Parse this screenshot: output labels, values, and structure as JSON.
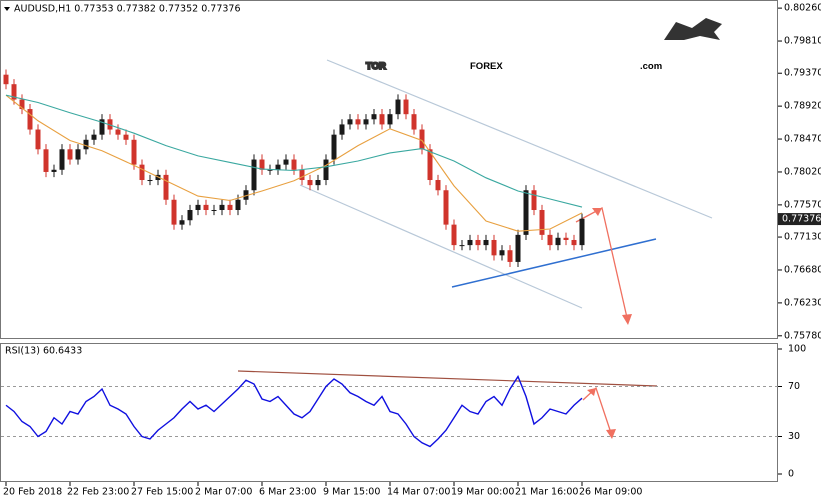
{
  "logo": {
    "prefix": "TOR",
    "brand": "FOREX",
    "suffix": ".com"
  },
  "chart_data": [
    {
      "type": "candlestick",
      "title": "AUDUSD,H1  0.77353 0.77382 0.77352 0.77376",
      "up_color": "#1a1a1a",
      "down_color": "#d0342c",
      "open": [
        0.7935,
        0.7922,
        0.7901,
        0.7888,
        0.786,
        0.7833,
        0.7802,
        0.7805,
        0.7833,
        0.7819,
        0.7833,
        0.7846,
        0.7853,
        0.7874,
        0.786,
        0.7853,
        0.7846,
        0.7812,
        0.7791,
        0.7791,
        0.7798,
        0.7764,
        0.773,
        0.7736,
        0.775,
        0.7757,
        0.775,
        0.775,
        0.7757,
        0.775,
        0.7764,
        0.7777,
        0.7819,
        0.7805,
        0.7805,
        0.7812,
        0.7819,
        0.7805,
        0.7791,
        0.7784,
        0.7791,
        0.7819,
        0.7853,
        0.7867,
        0.7874,
        0.7867,
        0.7874,
        0.7881,
        0.7867,
        0.7881,
        0.7901,
        0.7881,
        0.786,
        0.7833,
        0.7791,
        0.7777,
        0.773,
        0.7702,
        0.7702,
        0.7709,
        0.7702,
        0.7709,
        0.7688,
        0.7695,
        0.7679,
        0.7716,
        0.7777,
        0.775,
        0.7716,
        0.7702,
        0.7712,
        0.7709,
        0.7702
      ],
      "high": [
        0.7942,
        0.7929,
        0.7908,
        0.7895,
        0.7867,
        0.784,
        0.7812,
        0.784,
        0.784,
        0.784,
        0.7853,
        0.786,
        0.7881,
        0.7881,
        0.7867,
        0.786,
        0.7853,
        0.7819,
        0.7798,
        0.7805,
        0.7805,
        0.7771,
        0.7743,
        0.7757,
        0.7764,
        0.7764,
        0.7757,
        0.7764,
        0.7764,
        0.7771,
        0.7784,
        0.7826,
        0.7826,
        0.7812,
        0.7819,
        0.7826,
        0.7826,
        0.7812,
        0.7798,
        0.7798,
        0.7826,
        0.786,
        0.7874,
        0.7881,
        0.7881,
        0.7881,
        0.7888,
        0.7888,
        0.7888,
        0.7908,
        0.7908,
        0.7888,
        0.7867,
        0.784,
        0.7798,
        0.7784,
        0.7737,
        0.7709,
        0.7716,
        0.7716,
        0.7716,
        0.7716,
        0.7702,
        0.7702,
        0.7723,
        0.7784,
        0.7784,
        0.7757,
        0.7723,
        0.7719,
        0.7719,
        0.7716,
        0.7745
      ],
      "low": [
        0.7915,
        0.7894,
        0.7881,
        0.7853,
        0.7826,
        0.7795,
        0.7795,
        0.7798,
        0.7812,
        0.7812,
        0.7826,
        0.7839,
        0.7846,
        0.7853,
        0.7846,
        0.7839,
        0.7805,
        0.7784,
        0.7784,
        0.7784,
        0.7757,
        0.7723,
        0.7723,
        0.7729,
        0.7743,
        0.7743,
        0.7743,
        0.7743,
        0.7743,
        0.7743,
        0.7757,
        0.777,
        0.7798,
        0.7798,
        0.7798,
        0.7805,
        0.7798,
        0.7784,
        0.7777,
        0.7777,
        0.7784,
        0.7812,
        0.7846,
        0.786,
        0.786,
        0.786,
        0.7867,
        0.786,
        0.786,
        0.7874,
        0.7874,
        0.7853,
        0.7826,
        0.7784,
        0.777,
        0.7723,
        0.7695,
        0.7695,
        0.7695,
        0.7695,
        0.7695,
        0.7681,
        0.7681,
        0.7672,
        0.7672,
        0.7709,
        0.7743,
        0.7709,
        0.7695,
        0.7695,
        0.7702,
        0.7695,
        0.7695
      ],
      "close": [
        0.7922,
        0.7901,
        0.7888,
        0.786,
        0.7833,
        0.7802,
        0.7805,
        0.7833,
        0.7819,
        0.7833,
        0.7846,
        0.7853,
        0.7874,
        0.786,
        0.7853,
        0.7846,
        0.7812,
        0.7791,
        0.7791,
        0.7798,
        0.7764,
        0.773,
        0.7736,
        0.775,
        0.7757,
        0.775,
        0.775,
        0.7757,
        0.775,
        0.7764,
        0.7777,
        0.7819,
        0.7805,
        0.7805,
        0.7812,
        0.7819,
        0.7805,
        0.7791,
        0.7784,
        0.7791,
        0.7819,
        0.7853,
        0.7867,
        0.7874,
        0.7867,
        0.7874,
        0.7881,
        0.7867,
        0.7881,
        0.7901,
        0.7881,
        0.786,
        0.7833,
        0.7791,
        0.7777,
        0.773,
        0.7702,
        0.7702,
        0.7709,
        0.7702,
        0.7709,
        0.7688,
        0.7695,
        0.7679,
        0.7716,
        0.7777,
        0.775,
        0.7716,
        0.7702,
        0.7712,
        0.7709,
        0.7702,
        0.7738
      ],
      "series": [
        {
          "color": "#e8a040",
          "x": [
            0,
            4,
            8,
            12,
            16,
            20,
            24,
            28,
            32,
            36,
            40,
            44,
            48,
            52,
            56,
            60,
            64,
            68,
            72
          ],
          "values": [
            0.7907,
            0.7872,
            0.7845,
            0.7831,
            0.7811,
            0.779,
            0.7769,
            0.7763,
            0.7776,
            0.779,
            0.7811,
            0.7838,
            0.7861,
            0.7845,
            0.7783,
            0.7735,
            0.7721,
            0.7724,
            0.7746
          ]
        },
        {
          "color": "#3aa8a0",
          "x": [
            0,
            4,
            8,
            12,
            16,
            20,
            24,
            28,
            32,
            36,
            40,
            44,
            48,
            52,
            56,
            60,
            64,
            68,
            72
          ],
          "values": [
            0.7907,
            0.7897,
            0.7883,
            0.787,
            0.7855,
            0.7838,
            0.7824,
            0.7815,
            0.7806,
            0.7804,
            0.7809,
            0.7817,
            0.7828,
            0.7834,
            0.7817,
            0.7794,
            0.7776,
            0.7765,
            0.7754
          ]
        }
      ],
      "last_price": {
        "value": 0.77376,
        "label": "0.77376"
      },
      "ylim": [
        0.7575,
        0.8033
      ],
      "yticks": [
        {
          "value": 0.8026,
          "label": "0.80260"
        },
        {
          "value": 0.7981,
          "label": "0.79810"
        },
        {
          "value": 0.7937,
          "label": "0.79370"
        },
        {
          "value": 0.7892,
          "label": "0.78920"
        },
        {
          "value": 0.7847,
          "label": "0.78470"
        },
        {
          "value": 0.7802,
          "label": "0.78020"
        },
        {
          "value": 0.7757,
          "label": "0.77570"
        },
        {
          "value": 0.7713,
          "label": "0.77130"
        },
        {
          "value": 0.7668,
          "label": "0.76680"
        },
        {
          "value": 0.7623,
          "label": "0.76230"
        },
        {
          "value": 0.7578,
          "label": "0.75780"
        }
      ]
    },
    {
      "type": "line",
      "title": "RSI(13) 60.6433",
      "color": "#1010e0",
      "values": [
        55,
        50,
        42,
        38,
        30,
        34,
        45,
        40,
        50,
        48,
        58,
        62,
        68,
        55,
        52,
        48,
        38,
        30,
        28,
        35,
        40,
        45,
        52,
        58,
        52,
        55,
        50,
        56,
        62,
        68,
        75,
        72,
        60,
        58,
        62,
        55,
        48,
        45,
        50,
        60,
        70,
        76,
        72,
        65,
        62,
        58,
        55,
        62,
        50,
        48,
        40,
        30,
        25,
        22,
        28,
        35,
        45,
        55,
        50,
        48,
        58,
        62,
        55,
        68,
        78,
        62,
        40,
        45,
        52,
        50,
        48,
        55,
        60.6433
      ],
      "ylim": [
        0,
        100
      ],
      "yticks": [
        100,
        70,
        30,
        0
      ],
      "x_labels": [
        {
          "value": 0,
          "label": "20 Feb 2018"
        },
        {
          "value": 8,
          "label": "22 Feb 23:00"
        },
        {
          "value": 16,
          "label": "27 Feb 15:00"
        },
        {
          "value": 24,
          "label": "2 Mar 07:00"
        },
        {
          "value": 32,
          "label": "6 Mar 23:00"
        },
        {
          "value": 40,
          "label": "9 Mar 15:00"
        },
        {
          "value": 48,
          "label": "14 Mar 07:00"
        },
        {
          "value": 56,
          "label": "19 Mar 00:00"
        },
        {
          "value": 64,
          "label": "21 Mar 16:00"
        },
        {
          "value": 72,
          "label": "26 Mar 09:00"
        }
      ]
    }
  ]
}
